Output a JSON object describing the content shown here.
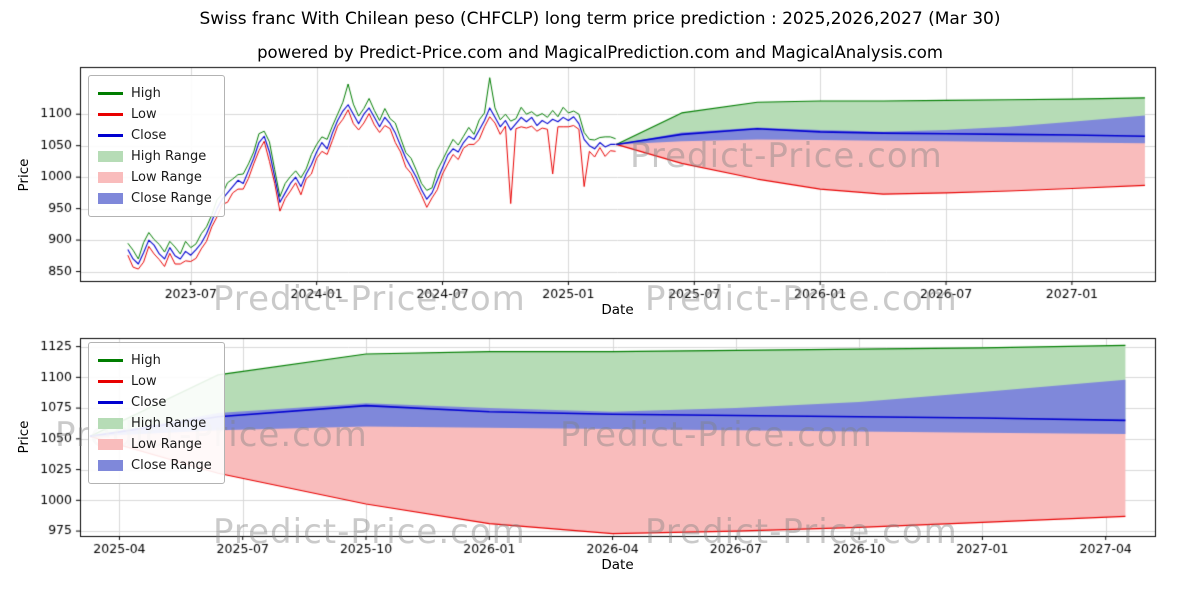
{
  "header": {
    "title": "Swiss franc With Chilean peso (CHFCLP) long term price prediction : 2025,2026,2027 (Mar 30)",
    "subtitle": "powered by Predict-Price.com and MagicalPrediction.com and MagicalAnalysis.com"
  },
  "watermark": "Predict-Price.com",
  "legend": {
    "items": [
      {
        "label": "High",
        "kind": "line",
        "color": "#007d00"
      },
      {
        "label": "Low",
        "kind": "line",
        "color": "#e80000"
      },
      {
        "label": "Close",
        "kind": "line",
        "color": "#0000d0"
      },
      {
        "label": "High Range",
        "kind": "patch",
        "color": "#b6dcb6"
      },
      {
        "label": "Low Range",
        "kind": "patch",
        "color": "#f9bcbc"
      },
      {
        "label": "Close Range",
        "kind": "patch",
        "color": "#7f88da"
      }
    ]
  },
  "chart_data": {
    "type": "line",
    "colors": {
      "high": "#007d00",
      "low": "#e80000",
      "close": "#0000d0",
      "high_range": "#b6dcb6",
      "low_range": "#f9bcbc",
      "close_range": "#7f88da",
      "grid": "#d8d8d8",
      "spine": "#000000"
    },
    "historical": {
      "x_start": 2023.25,
      "x_step": 0.0208333,
      "high": [
        895,
        884,
        870,
        896,
        912,
        901,
        893,
        881,
        898,
        889,
        878,
        898,
        888,
        894,
        910,
        921,
        940,
        964,
        973,
        991,
        997,
        1004,
        1005,
        1021,
        1040,
        1069,
        1073,
        1056,
        1012,
        969,
        990,
        1001,
        1010,
        999,
        1013,
        1036,
        1052,
        1064,
        1060,
        1081,
        1100,
        1119,
        1148,
        1116,
        1097,
        1109,
        1125,
        1106,
        1090,
        1109,
        1093,
        1086,
        1062,
        1039,
        1030,
        1011,
        990,
        979,
        983,
        1011,
        1027,
        1044,
        1060,
        1051,
        1065,
        1079,
        1068,
        1091,
        1102,
        1158,
        1110,
        1091,
        1100,
        1089,
        1093,
        1111,
        1100,
        1104,
        1097,
        1101,
        1095,
        1106,
        1096,
        1111,
        1102,
        1105,
        1100,
        1071,
        1060,
        1059,
        1063,
        1064,
        1064,
        1061
      ],
      "low": [
        876,
        857,
        854,
        865,
        890,
        878,
        869,
        858,
        879,
        862,
        862,
        867,
        866,
        871,
        886,
        898,
        921,
        937,
        957,
        960,
        975,
        981,
        981,
        998,
        1021,
        1042,
        1057,
        1025,
        990,
        946,
        966,
        978,
        991,
        972,
        997,
        1005,
        1030,
        1041,
        1036,
        1058,
        1081,
        1092,
        1107,
        1085,
        1075,
        1086,
        1101,
        1083,
        1071,
        1082,
        1077,
        1055,
        1040,
        1016,
        1006,
        988,
        971,
        952,
        967,
        980,
        1005,
        1021,
        1036,
        1028,
        1046,
        1052,
        1052,
        1060,
        1080,
        1096,
        1086,
        1068,
        1081,
        958,
        1077,
        1080,
        1078,
        1081,
        1073,
        1078,
        1076,
        1005,
        1080,
        1080,
        1080,
        1082,
        1076,
        985,
        1041,
        1032,
        1047,
        1033,
        1042,
        1041
      ],
      "close": [
        885,
        870,
        862,
        880,
        900,
        892,
        878,
        870,
        888,
        875,
        870,
        882,
        876,
        885,
        895,
        910,
        930,
        950,
        965,
        975,
        985,
        995,
        990,
        1010,
        1030,
        1055,
        1065,
        1040,
        1000,
        960,
        975,
        990,
        1000,
        985,
        1005,
        1020,
        1040,
        1055,
        1045,
        1070,
        1090,
        1105,
        1115,
        1100,
        1085,
        1100,
        1110,
        1095,
        1080,
        1095,
        1085,
        1070,
        1050,
        1030,
        1015,
        1000,
        980,
        965,
        975,
        995,
        1015,
        1035,
        1045,
        1040,
        1055,
        1065,
        1060,
        1075,
        1090,
        1110,
        1095,
        1080,
        1090,
        1075,
        1085,
        1095,
        1088,
        1095,
        1082,
        1090,
        1085,
        1092,
        1088,
        1095,
        1090,
        1096,
        1085,
        1060,
        1050,
        1045,
        1055,
        1048,
        1052,
        1052
      ]
    },
    "prediction": {
      "x": [
        2025.19,
        2025.45,
        2025.75,
        2026.0,
        2026.25,
        2026.5,
        2026.75,
        2027.0,
        2027.29
      ],
      "close": [
        1052,
        1068,
        1077,
        1072,
        1070,
        1069,
        1068,
        1067,
        1065
      ],
      "high": [
        1052,
        1102,
        1119,
        1121,
        1121,
        1122,
        1123,
        1124,
        1126
      ],
      "low": [
        1052,
        1022,
        997,
        981,
        973,
        975,
        978,
        982,
        987
      ],
      "close_upper": [
        1052,
        1071,
        1079,
        1075,
        1072,
        1075,
        1080,
        1088,
        1098
      ],
      "close_lower": [
        1052,
        1057,
        1060,
        1059,
        1058,
        1057,
        1056,
        1055,
        1054
      ]
    },
    "charts": [
      {
        "name": "top",
        "xlabel": "Date",
        "ylabel": "Price",
        "xlim": [
          2023.06,
          2027.33
        ],
        "ylim": [
          835,
          1175
        ],
        "show_historical": true,
        "xticks": {
          "values": [
            2023.5,
            2024.0,
            2024.5,
            2025.0,
            2025.5,
            2026.0,
            2026.5,
            2027.0
          ],
          "labels": [
            "2023-07",
            "2024-01",
            "2024-07",
            "2025-01",
            "2025-07",
            "2026-01",
            "2026-07",
            "2027-01"
          ]
        },
        "yticks": {
          "values": [
            850,
            900,
            950,
            1000,
            1050,
            1100
          ],
          "labels": [
            "850",
            "900",
            "950",
            "1000",
            "1050",
            "1100"
          ]
        }
      },
      {
        "name": "bottom",
        "xlabel": "Date",
        "ylabel": "Price",
        "xlim": [
          2025.17,
          2027.35
        ],
        "ylim": [
          971,
          1132
        ],
        "show_historical": false,
        "xticks": {
          "values": [
            2025.25,
            2025.5,
            2025.75,
            2026.0,
            2026.25,
            2026.5,
            2026.75,
            2027.0,
            2027.25
          ],
          "labels": [
            "2025-04",
            "2025-07",
            "2025-10",
            "2026-01",
            "2026-04",
            "2026-07",
            "2026-10",
            "2027-01",
            "2027-04"
          ]
        },
        "yticks": {
          "values": [
            975,
            1000,
            1025,
            1050,
            1075,
            1100,
            1125
          ],
          "labels": [
            "975",
            "1000",
            "1025",
            "1050",
            "1075",
            "1100",
            "1125"
          ]
        }
      }
    ]
  }
}
